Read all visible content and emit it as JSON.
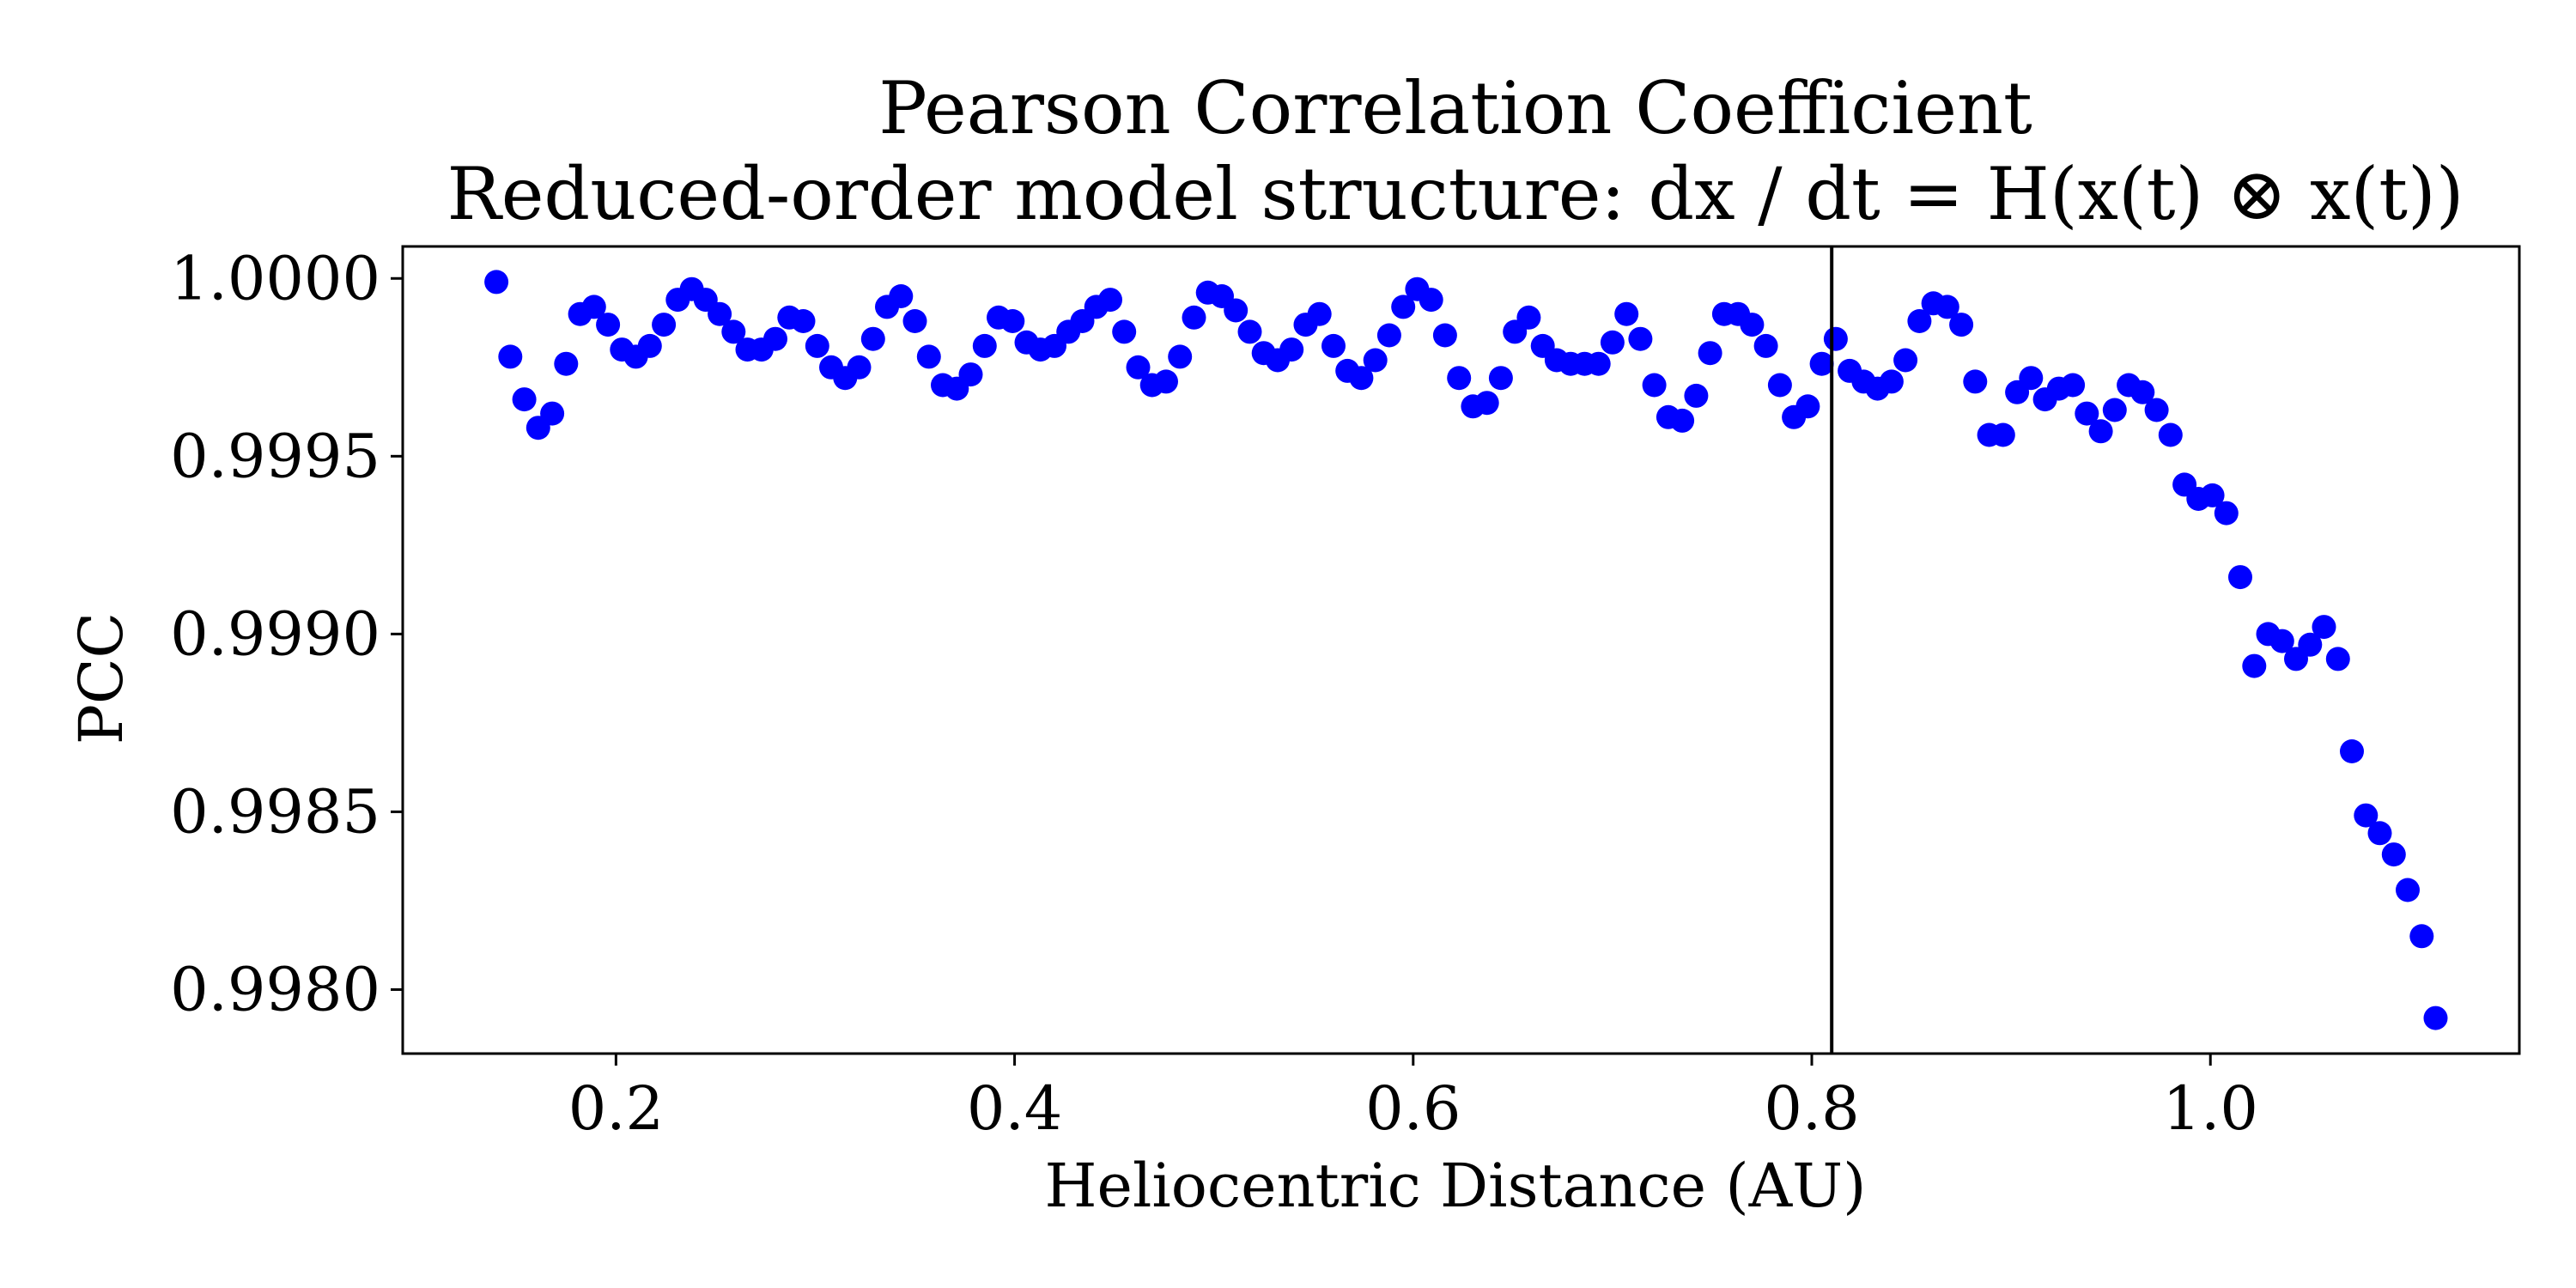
{
  "chart_data": {
    "type": "scatter",
    "title": "Pearson Correlation Coefficient",
    "subtitle": "Reduced-order model structure: dx / dt = H(x(t) ⊗ x(t))",
    "xlabel": "Heliocentric Distance (AU)",
    "ylabel": "PCC",
    "xlim": [
      0.093,
      1.155
    ],
    "ylim": [
      0.99782,
      1.00009
    ],
    "x_ticks": [
      0.2,
      0.4,
      0.6,
      0.8,
      1.0
    ],
    "x_tick_labels": [
      "0.2",
      "0.4",
      "0.6",
      "0.8",
      "1.0"
    ],
    "y_ticks": [
      0.998,
      0.9985,
      0.999,
      0.9995,
      1.0
    ],
    "y_tick_labels": [
      "0.9980",
      "0.9985",
      "0.9990",
      "0.9995",
      "1.0000"
    ],
    "grid": false,
    "marker_color": "#0000ff",
    "vline": {
      "x": 0.81,
      "color": "#000000"
    },
    "points": [
      [
        0.14,
        0.99999
      ],
      [
        0.147,
        0.99978
      ],
      [
        0.154,
        0.99966
      ],
      [
        0.161,
        0.99958
      ],
      [
        0.168,
        0.99962
      ],
      [
        0.175,
        0.99976
      ],
      [
        0.182,
        0.9999
      ],
      [
        0.189,
        0.99992
      ],
      [
        0.196,
        0.99987
      ],
      [
        0.203,
        0.9998
      ],
      [
        0.21,
        0.99978
      ],
      [
        0.217,
        0.99981
      ],
      [
        0.224,
        0.99987
      ],
      [
        0.231,
        0.99994
      ],
      [
        0.238,
        0.99997
      ],
      [
        0.245,
        0.99994
      ],
      [
        0.252,
        0.9999
      ],
      [
        0.259,
        0.99985
      ],
      [
        0.266,
        0.9998
      ],
      [
        0.273,
        0.9998
      ],
      [
        0.28,
        0.99983
      ],
      [
        0.287,
        0.99989
      ],
      [
        0.294,
        0.99988
      ],
      [
        0.301,
        0.99981
      ],
      [
        0.308,
        0.99975
      ],
      [
        0.315,
        0.99972
      ],
      [
        0.322,
        0.99975
      ],
      [
        0.329,
        0.99983
      ],
      [
        0.336,
        0.99992
      ],
      [
        0.343,
        0.99995
      ],
      [
        0.35,
        0.99988
      ],
      [
        0.357,
        0.99978
      ],
      [
        0.364,
        0.9997
      ],
      [
        0.371,
        0.99969
      ],
      [
        0.378,
        0.99973
      ],
      [
        0.385,
        0.99981
      ],
      [
        0.392,
        0.99989
      ],
      [
        0.399,
        0.99988
      ],
      [
        0.406,
        0.99982
      ],
      [
        0.413,
        0.9998
      ],
      [
        0.42,
        0.99981
      ],
      [
        0.427,
        0.99985
      ],
      [
        0.434,
        0.99988
      ],
      [
        0.441,
        0.99992
      ],
      [
        0.448,
        0.99994
      ],
      [
        0.455,
        0.99985
      ],
      [
        0.462,
        0.99975
      ],
      [
        0.469,
        0.9997
      ],
      [
        0.476,
        0.99971
      ],
      [
        0.483,
        0.99978
      ],
      [
        0.49,
        0.99989
      ],
      [
        0.497,
        0.99996
      ],
      [
        0.504,
        0.99995
      ],
      [
        0.511,
        0.99991
      ],
      [
        0.518,
        0.99985
      ],
      [
        0.525,
        0.99979
      ],
      [
        0.532,
        0.99977
      ],
      [
        0.539,
        0.9998
      ],
      [
        0.546,
        0.99987
      ],
      [
        0.553,
        0.9999
      ],
      [
        0.56,
        0.99981
      ],
      [
        0.567,
        0.99974
      ],
      [
        0.574,
        0.99972
      ],
      [
        0.581,
        0.99977
      ],
      [
        0.588,
        0.99984
      ],
      [
        0.595,
        0.99992
      ],
      [
        0.602,
        0.99997
      ],
      [
        0.609,
        0.99994
      ],
      [
        0.616,
        0.99984
      ],
      [
        0.623,
        0.99972
      ],
      [
        0.63,
        0.99964
      ],
      [
        0.637,
        0.99965
      ],
      [
        0.644,
        0.99972
      ],
      [
        0.651,
        0.99985
      ],
      [
        0.658,
        0.99989
      ],
      [
        0.665,
        0.99981
      ],
      [
        0.672,
        0.99977
      ],
      [
        0.679,
        0.99976
      ],
      [
        0.686,
        0.99976
      ],
      [
        0.693,
        0.99976
      ],
      [
        0.7,
        0.99982
      ],
      [
        0.707,
        0.9999
      ],
      [
        0.714,
        0.99983
      ],
      [
        0.721,
        0.9997
      ],
      [
        0.728,
        0.99961
      ],
      [
        0.735,
        0.9996
      ],
      [
        0.742,
        0.99967
      ],
      [
        0.749,
        0.99979
      ],
      [
        0.756,
        0.9999
      ],
      [
        0.763,
        0.9999
      ],
      [
        0.77,
        0.99987
      ],
      [
        0.777,
        0.99981
      ],
      [
        0.784,
        0.9997
      ],
      [
        0.791,
        0.99961
      ],
      [
        0.798,
        0.99964
      ],
      [
        0.805,
        0.99976
      ],
      [
        0.812,
        0.99983
      ],
      [
        0.819,
        0.99974
      ],
      [
        0.826,
        0.99971
      ],
      [
        0.833,
        0.99969
      ],
      [
        0.84,
        0.99971
      ],
      [
        0.847,
        0.99977
      ],
      [
        0.854,
        0.99988
      ],
      [
        0.861,
        0.99993
      ],
      [
        0.868,
        0.99992
      ],
      [
        0.875,
        0.99987
      ],
      [
        0.882,
        0.99971
      ],
      [
        0.889,
        0.99956
      ],
      [
        0.896,
        0.99956
      ],
      [
        0.903,
        0.99968
      ],
      [
        0.91,
        0.99972
      ],
      [
        0.917,
        0.99966
      ],
      [
        0.924,
        0.99969
      ],
      [
        0.931,
        0.9997
      ],
      [
        0.938,
        0.99962
      ],
      [
        0.945,
        0.99957
      ],
      [
        0.952,
        0.99963
      ],
      [
        0.959,
        0.9997
      ],
      [
        0.966,
        0.99968
      ],
      [
        0.973,
        0.99963
      ],
      [
        0.98,
        0.99956
      ],
      [
        0.987,
        0.99942
      ],
      [
        0.994,
        0.99938
      ],
      [
        1.001,
        0.99939
      ],
      [
        1.008,
        0.99934
      ],
      [
        1.015,
        0.99916
      ],
      [
        1.022,
        0.99891
      ],
      [
        1.029,
        0.999
      ],
      [
        1.036,
        0.99898
      ],
      [
        1.043,
        0.99893
      ],
      [
        1.05,
        0.99897
      ],
      [
        1.057,
        0.99902
      ],
      [
        1.064,
        0.99893
      ],
      [
        1.071,
        0.99867
      ],
      [
        1.078,
        0.99849
      ],
      [
        1.085,
        0.99844
      ],
      [
        1.092,
        0.99838
      ],
      [
        1.099,
        0.99828
      ],
      [
        1.106,
        0.99815
      ],
      [
        1.113,
        0.99792
      ]
    ]
  }
}
